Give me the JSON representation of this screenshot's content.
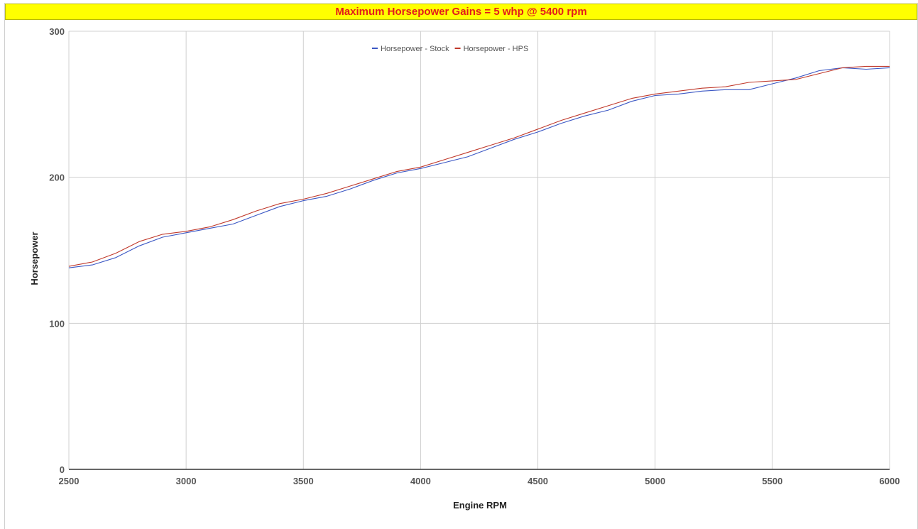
{
  "banner": {
    "title": "Maximum Horsepower Gains = 5 whp @ 5400 rpm",
    "bg_color": "#ffff00",
    "text_color": "#e31b1b"
  },
  "chart_data": {
    "type": "line",
    "title": "Maximum Horsepower Gains = 5 whp @ 5400 rpm",
    "xlabel": "Engine RPM",
    "ylabel": "Horsepower",
    "xlim": [
      2500,
      6000
    ],
    "ylim": [
      0,
      300
    ],
    "xticks": [
      2500,
      3000,
      3500,
      4000,
      4500,
      5000,
      5500,
      6000
    ],
    "yticks": [
      0,
      100,
      200,
      300
    ],
    "grid": true,
    "legend_position": "top-center",
    "x": [
      2500,
      2600,
      2700,
      2800,
      2900,
      3000,
      3100,
      3200,
      3300,
      3400,
      3500,
      3600,
      3700,
      3800,
      3900,
      4000,
      4100,
      4200,
      4300,
      4400,
      4500,
      4600,
      4700,
      4800,
      4900,
      5000,
      5100,
      5200,
      5300,
      5400,
      5500,
      5600,
      5700,
      5800,
      5900,
      6000
    ],
    "series": [
      {
        "name": "Horsepower - Stock",
        "color": "#3b57c4",
        "values": [
          138,
          140,
          145,
          153,
          159,
          162,
          165,
          168,
          174,
          180,
          184,
          187,
          192,
          198,
          203,
          206,
          210,
          214,
          220,
          226,
          231,
          237,
          242,
          246,
          252,
          256,
          257,
          259,
          260,
          260,
          264,
          268,
          273,
          275,
          274,
          275
        ]
      },
      {
        "name": "Horsepower - HPS",
        "color": "#c0392b",
        "values": [
          139,
          142,
          148,
          156,
          161,
          163,
          166,
          171,
          177,
          182,
          185,
          189,
          194,
          199,
          204,
          207,
          212,
          217,
          222,
          227,
          233,
          239,
          244,
          249,
          254,
          257,
          259,
          261,
          262,
          265,
          266,
          267,
          271,
          275,
          276,
          276
        ]
      }
    ]
  }
}
